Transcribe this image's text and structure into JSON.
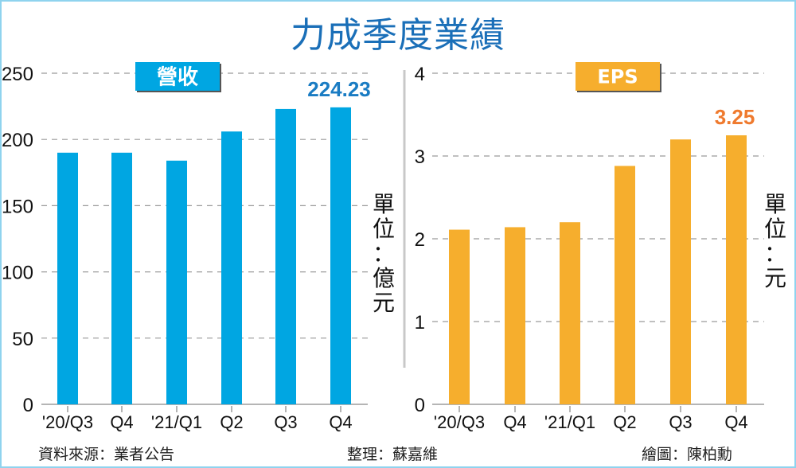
{
  "title": "力成季度業績",
  "colors": {
    "revenue": "#00a6e2",
    "eps": "#f6ae2d",
    "revenue_label": "#1a7cc3",
    "eps_label": "#ef7a2e",
    "title": "#1a6fb8"
  },
  "chart_data": [
    {
      "type": "bar",
      "title": "營收",
      "categories": [
        "'20/Q3",
        "Q4",
        "'21/Q1",
        "Q2",
        "Q3",
        "Q4"
      ],
      "values": [
        190,
        190,
        184,
        206,
        223,
        224.23
      ],
      "yticks": [
        "0",
        "50",
        "100",
        "150",
        "200",
        "250"
      ],
      "ylim": [
        0,
        250
      ],
      "unit": [
        "單",
        "位",
        "：",
        "億",
        "元"
      ],
      "annotation": "224.23",
      "grid": true
    },
    {
      "type": "bar",
      "title": "EPS",
      "categories": [
        "'20/Q3",
        "Q4",
        "'21/Q1",
        "Q2",
        "Q3",
        "Q4"
      ],
      "values": [
        2.11,
        2.14,
        2.2,
        2.88,
        3.2,
        3.25
      ],
      "yticks": [
        "0",
        "1",
        "2",
        "3",
        "4"
      ],
      "ylim": [
        0,
        4
      ],
      "unit": [
        "單",
        "位",
        "：",
        "元"
      ],
      "annotation": "3.25",
      "grid": true
    }
  ],
  "footer": {
    "source": "資料來源：業者公告",
    "editor": "整理：蘇嘉維",
    "artist": "繪圖：陳柏勳"
  }
}
